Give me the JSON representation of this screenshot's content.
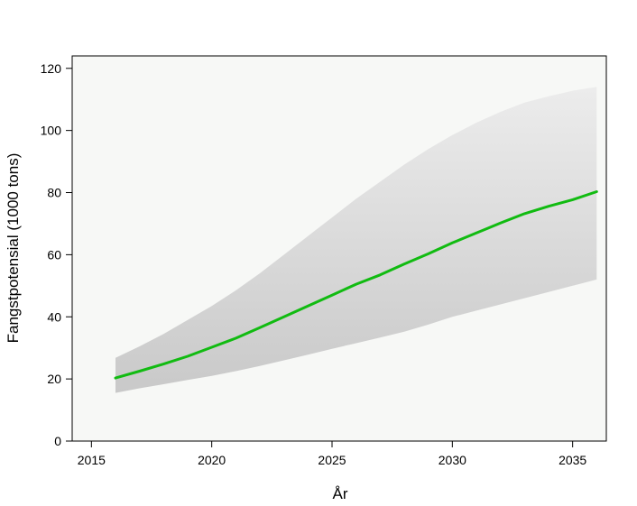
{
  "chart_data": {
    "type": "line",
    "title": "",
    "xlabel": "År",
    "ylabel": "Fangstpotensial (1000 tons)",
    "xlim": [
      2014.2,
      2036.4
    ],
    "ylim": [
      0,
      124
    ],
    "x_ticks": [
      2015,
      2020,
      2025,
      2030,
      2035
    ],
    "y_ticks": [
      0,
      20,
      40,
      60,
      80,
      100,
      120
    ],
    "grid": false,
    "legend": "none",
    "x": [
      2016,
      2017,
      2018,
      2019,
      2020,
      2021,
      2022,
      2023,
      2024,
      2025,
      2026,
      2027,
      2028,
      2029,
      2030,
      2031,
      2032,
      2033,
      2034,
      2035,
      2036
    ],
    "series": [
      {
        "kind": "line",
        "color": "#11bb11",
        "values": [
          20.3,
          22.5,
          24.8,
          27.3,
          30.2,
          33.1,
          36.5,
          40.0,
          43.5,
          47.0,
          50.5,
          53.5,
          57.0,
          60.3,
          63.8,
          67.0,
          70.2,
          73.2,
          75.6,
          77.7,
          80.3
        ]
      },
      {
        "kind": "band",
        "color_upper": "#ececec",
        "color_lower": "#c9c9c9",
        "lower": [
          15.5,
          17.0,
          18.3,
          19.7,
          21.0,
          22.5,
          24.2,
          26.0,
          27.8,
          29.7,
          31.5,
          33.3,
          35.2,
          37.5,
          40.0,
          42.0,
          44.0,
          46.0,
          48.0,
          50.0,
          52.0
        ],
        "upper": [
          26.8,
          30.5,
          34.5,
          39.0,
          43.5,
          48.5,
          54.0,
          60.0,
          66.0,
          72.0,
          78.0,
          83.5,
          89.0,
          94.0,
          98.5,
          102.5,
          106.0,
          109.0,
          111.0,
          112.8,
          114.0
        ]
      }
    ]
  }
}
